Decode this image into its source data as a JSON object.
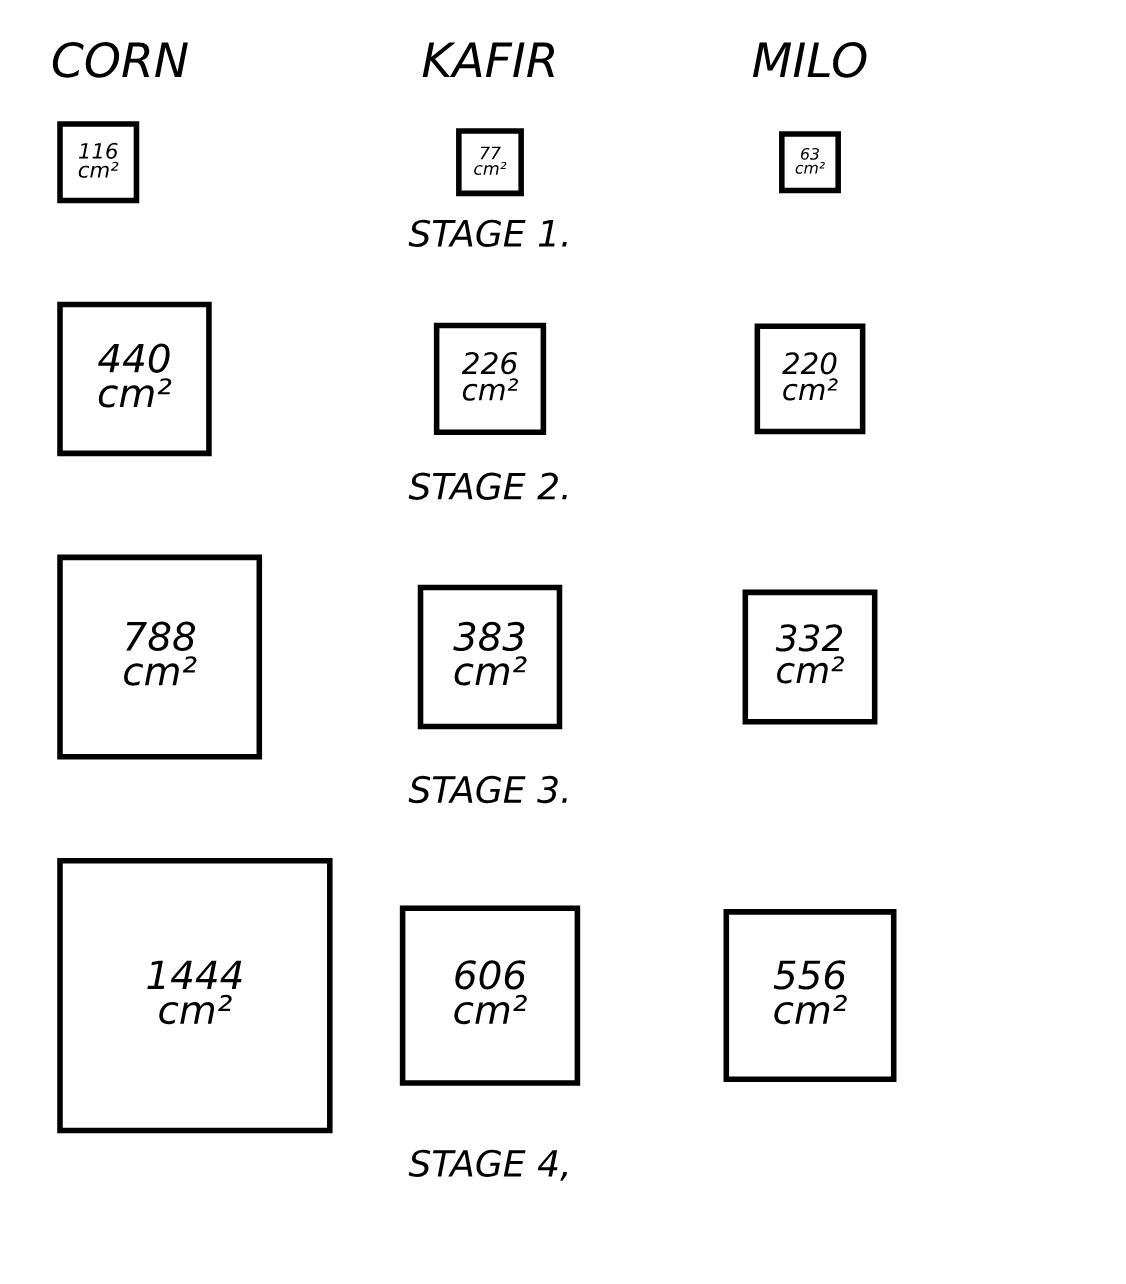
{
  "chart_data": {
    "type": "other",
    "categories": [
      "CORN",
      "KAFIR",
      "MILO"
    ],
    "series": [
      {
        "name": "STAGE 1.",
        "values": [
          116,
          77,
          63
        ],
        "value_labels": [
          "116 cm²",
          "77 cm²",
          "63 cm²"
        ]
      },
      {
        "name": "STAGE 2.",
        "values": [
          440,
          226,
          220
        ],
        "value_labels": [
          "440 cm²",
          "226 cm²",
          "220 cm²"
        ]
      },
      {
        "name": "STAGE 3.",
        "values": [
          788,
          383,
          332
        ],
        "value_labels": [
          "788 cm²",
          "383 cm²",
          "332 cm²"
        ]
      },
      {
        "name": "STAGE 4,",
        "values": [
          1444,
          606,
          556
        ],
        "value_labels": [
          "1444 cm²",
          "606 cm²",
          "556 cm²"
        ]
      }
    ]
  }
}
